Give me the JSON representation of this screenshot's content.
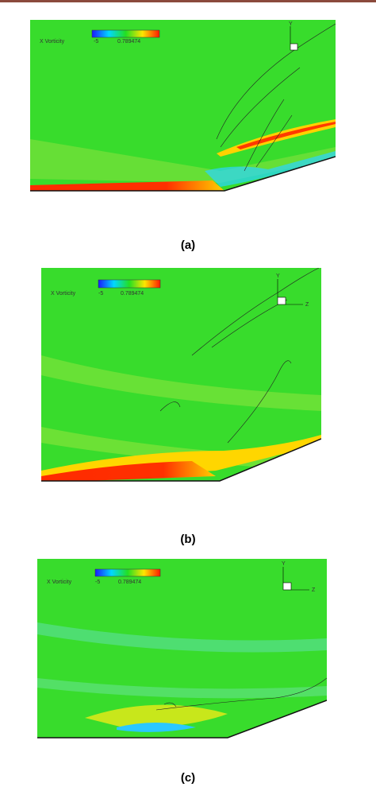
{
  "panels": [
    {
      "caption": "(a)",
      "legend": {
        "title": "X Vorticity",
        "min_label": "-5",
        "max_label": "0.789474"
      },
      "axes": [
        "Y"
      ]
    },
    {
      "caption": "(b)",
      "legend": {
        "title": "X Vorticity",
        "min_label": "-5",
        "max_label": "0.789474"
      },
      "axes": [
        "Y",
        "Z"
      ]
    },
    {
      "caption": "(c)",
      "legend": {
        "title": "X Vorticity",
        "min_label": "-5",
        "max_label": "0.789474"
      },
      "axes": [
        "Y",
        "Z"
      ]
    }
  ]
}
